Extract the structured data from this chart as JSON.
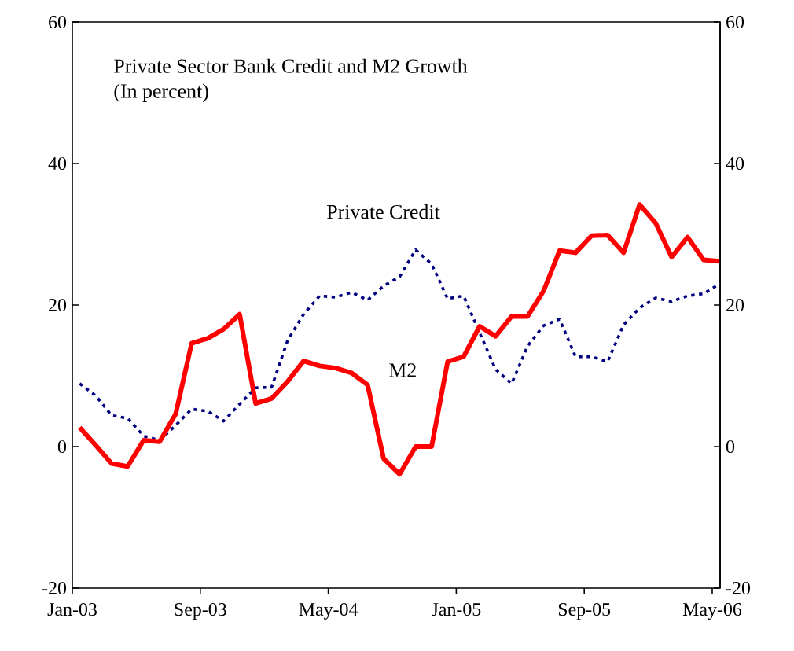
{
  "chart_data": {
    "type": "line",
    "title": "Private Sector Bank Credit and M2 Growth",
    "subtitle": "(In percent)",
    "x": [
      "2003-01-15",
      "2003-02-15",
      "2003-03-15",
      "2003-04-15",
      "2003-05-15",
      "2003-06-15",
      "2003-07-15",
      "2003-08-15",
      "2003-09-15",
      "2003-10-15",
      "2003-11-15",
      "2003-12-15",
      "2004-01-15",
      "2004-02-15",
      "2004-03-15",
      "2004-04-15",
      "2004-05-15",
      "2004-06-15",
      "2004-07-15",
      "2004-08-15",
      "2004-09-15",
      "2004-10-15",
      "2004-11-15",
      "2004-12-15",
      "2005-01-15",
      "2005-02-15",
      "2005-03-15",
      "2005-04-15",
      "2005-05-15",
      "2005-06-15",
      "2005-07-15",
      "2005-08-15",
      "2005-09-15",
      "2005-10-15",
      "2005-11-15",
      "2005-12-15",
      "2006-01-15",
      "2006-02-15",
      "2006-03-15",
      "2006-04-15",
      "2006-05-15"
    ],
    "series": [
      {
        "name": "Private Credit",
        "color": "#000080",
        "line_style": "dashed",
        "values": [
          8.9,
          7.2,
          4.4,
          4.0,
          1.5,
          0.9,
          3.0,
          5.3,
          5.0,
          3.6,
          6.0,
          8.3,
          8.4,
          15.0,
          18.7,
          21.3,
          21.1,
          21.8,
          20.7,
          22.7,
          24.0,
          27.8,
          25.8,
          20.9,
          21.3,
          16.1,
          10.9,
          8.9,
          14.2,
          17.1,
          18.0,
          12.7,
          12.7,
          12.0,
          17.2,
          19.6,
          21.0,
          20.5,
          21.3,
          21.6,
          23.0
        ]
      },
      {
        "name": "M2",
        "color": "#ff0000",
        "line_style": "solid",
        "values": [
          2.7,
          0.2,
          -2.4,
          -2.8,
          0.9,
          0.7,
          4.6,
          14.6,
          15.3,
          16.6,
          18.7,
          6.1,
          6.8,
          9.2,
          12.1,
          11.4,
          11.1,
          10.4,
          8.7,
          -1.7,
          -3.9,
          0.0,
          0.0,
          12.0,
          12.7,
          17.0,
          15.6,
          18.4,
          18.4,
          22.0,
          27.7,
          27.4,
          29.8,
          29.9,
          27.4,
          34.2,
          31.6,
          26.8,
          29.6,
          26.4,
          26.2
        ]
      }
    ],
    "xlim": [
      "2003-01-01",
      "2006-05-16"
    ],
    "xticks": [
      {
        "value": "2003-01-01",
        "label": "Jan-03"
      },
      {
        "value": "2003-09-01",
        "label": "Sep-03"
      },
      {
        "value": "2004-05-01",
        "label": "May-04"
      },
      {
        "value": "2005-01-01",
        "label": "Jan-05"
      },
      {
        "value": "2005-09-01",
        "label": "Sep-05"
      },
      {
        "value": "2006-05-01",
        "label": "May-06"
      }
    ],
    "ylim": [
      -20,
      60
    ],
    "yticks": [
      -20,
      0,
      20,
      40,
      60
    ],
    "y2lim": [
      -20,
      60
    ],
    "y2ticks": [
      -20,
      0,
      20,
      40,
      60
    ],
    "grid": false,
    "legend": false,
    "marker": "none"
  }
}
